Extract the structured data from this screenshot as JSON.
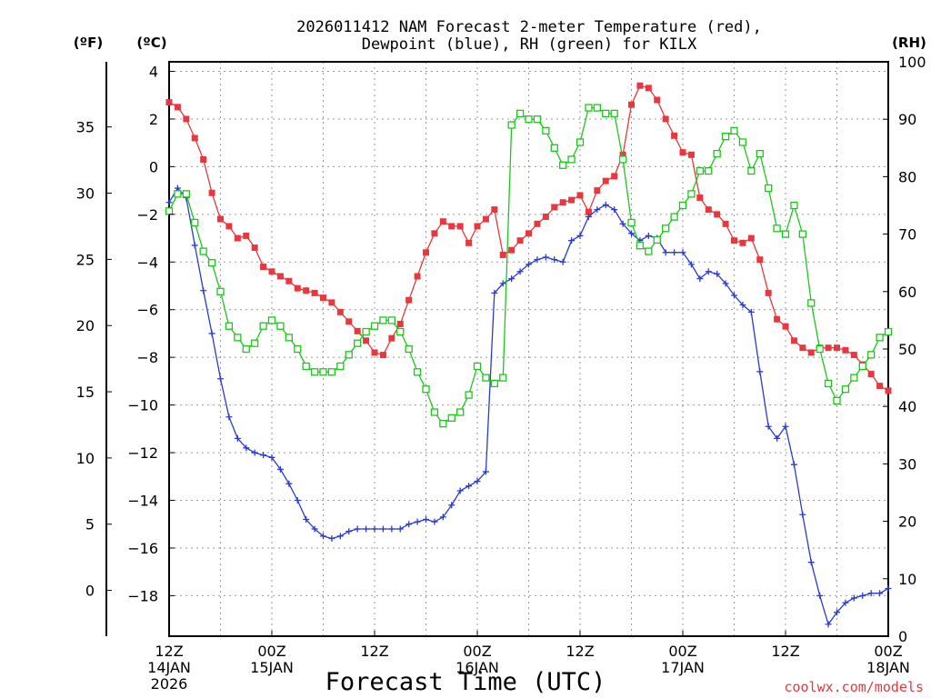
{
  "chart_data": {
    "type": "line",
    "title_line1": "2026011412 NAM Forecast 2-meter Temperature (red),",
    "title_line2": "Dewpoint (blue), RH (green) for KILX",
    "xlabel": "Forecast Time (UTC)",
    "credit": "coolwx.com/models",
    "left_outer_unit": "(ºF)",
    "left_inner_unit": "(ºC)",
    "right_unit": "(RH)",
    "celsius_ticks": [
      "4",
      "2",
      "0",
      "−2",
      "−4",
      "−6",
      "−8",
      "−10",
      "−12",
      "−14",
      "−16",
      "−18"
    ],
    "celsius_tick_values": [
      4,
      2,
      0,
      -2,
      -4,
      -6,
      -8,
      -10,
      -12,
      -14,
      -16,
      -18
    ],
    "fahrenheit_ticks": [
      "35",
      "30",
      "25",
      "20",
      "15",
      "10",
      "5",
      "0"
    ],
    "fahrenheit_tick_values": [
      35,
      30,
      25,
      20,
      15,
      10,
      5,
      0
    ],
    "rh_ticks": [
      "100",
      "90",
      "80",
      "70",
      "60",
      "50",
      "40",
      "30",
      "20",
      "10",
      "0"
    ],
    "rh_tick_values": [
      100,
      90,
      80,
      70,
      60,
      50,
      40,
      30,
      20,
      10,
      0
    ],
    "x_ticks": [
      {
        "hour": 0,
        "line1": "12Z",
        "line2": "14JAN",
        "line3": "2026"
      },
      {
        "hour": 12,
        "line1": "00Z",
        "line2": "15JAN",
        "line3": ""
      },
      {
        "hour": 24,
        "line1": "12Z",
        "line2": "",
        "line3": ""
      },
      {
        "hour": 36,
        "line1": "00Z",
        "line2": "16JAN",
        "line3": ""
      },
      {
        "hour": 48,
        "line1": "12Z",
        "line2": "",
        "line3": ""
      },
      {
        "hour": 60,
        "line1": "00Z",
        "line2": "17JAN",
        "line3": ""
      },
      {
        "hour": 72,
        "line1": "12Z",
        "line2": "",
        "line3": ""
      },
      {
        "hour": 84,
        "line1": "00Z",
        "line2": "18JAN",
        "line3": ""
      }
    ],
    "x_range_hours": [
      0,
      84
    ],
    "y_celsius_range": [
      -19.7,
      4.4
    ],
    "rh_range": [
      0,
      100
    ],
    "grid": true,
    "series": [
      {
        "name": "Temperature",
        "unit": "C",
        "color": "#e8383d",
        "marker": "filled-square",
        "values": [
          2.7,
          2.5,
          2.0,
          1.2,
          0.3,
          -1.1,
          -2.2,
          -2.5,
          -3.0,
          -2.9,
          -3.4,
          -4.2,
          -4.4,
          -4.6,
          -4.8,
          -5.1,
          -5.2,
          -5.3,
          -5.5,
          -5.7,
          -6.1,
          -6.5,
          -6.9,
          -7.3,
          -7.8,
          -7.9,
          -7.2,
          -6.6,
          -5.6,
          -4.6,
          -3.6,
          -2.8,
          -2.3,
          -2.5,
          -2.5,
          -3.2,
          -2.5,
          -2.2,
          -1.8,
          -3.7,
          -3.5,
          -3.1,
          -2.8,
          -2.4,
          -2.1,
          -1.7,
          -1.5,
          -1.4,
          -1.2,
          -1.9,
          -1.0,
          -0.6,
          -0.4,
          0.5,
          2.6,
          3.4,
          3.3,
          2.8,
          2.0,
          1.3,
          0.6,
          0.5,
          -1.3,
          -1.8,
          -2.0,
          -2.4,
          -3.1,
          -3.2,
          -3.0,
          -3.9,
          -5.3,
          -6.4,
          -6.7,
          -7.3,
          -7.6,
          -7.8,
          -7.6,
          -7.6,
          -7.6,
          -7.7,
          -7.9,
          -8.3,
          -8.7,
          -9.2,
          -9.4
        ]
      },
      {
        "name": "Dewpoint",
        "unit": "C",
        "color": "#2a3bd1",
        "marker": "plus",
        "values": [
          -1.5,
          -0.9,
          -1.3,
          -3.3,
          -5.2,
          -7.0,
          -8.9,
          -10.5,
          -11.4,
          -11.8,
          -12.0,
          -12.1,
          -12.2,
          -12.7,
          -13.3,
          -14.0,
          -14.8,
          -15.2,
          -15.5,
          -15.6,
          -15.5,
          -15.3,
          -15.2,
          -15.2,
          -15.2,
          -15.2,
          -15.2,
          -15.2,
          -15.0,
          -14.9,
          -14.8,
          -14.9,
          -14.7,
          -14.2,
          -13.6,
          -13.4,
          -13.2,
          -12.8,
          -5.3,
          -4.9,
          -4.7,
          -4.4,
          -4.1,
          -3.9,
          -3.8,
          -3.9,
          -4.0,
          -3.1,
          -2.9,
          -2.1,
          -1.8,
          -1.6,
          -1.8,
          -2.4,
          -2.8,
          -3.1,
          -2.9,
          -3.0,
          -3.6,
          -3.6,
          -3.6,
          -4.1,
          -4.7,
          -4.4,
          -4.5,
          -4.9,
          -5.4,
          -5.8,
          -6.1,
          -8.6,
          -10.9,
          -11.4,
          -10.9,
          -12.5,
          -14.6,
          -16.6,
          -18.0,
          -19.2,
          -18.7,
          -18.3,
          -18.1,
          -18.0,
          -17.9,
          -17.9,
          -17.7
        ]
      },
      {
        "name": "RH",
        "unit": "%",
        "color": "#1cc71c",
        "marker": "open-square",
        "values": [
          74,
          77,
          77,
          72,
          67,
          65,
          60,
          54,
          52,
          50,
          51,
          54,
          55,
          54,
          52,
          50,
          47,
          46,
          46,
          46,
          47,
          49,
          51,
          53,
          54,
          55,
          55,
          53,
          50,
          46,
          43,
          39,
          37,
          38,
          39,
          42,
          47,
          45,
          44,
          45,
          89,
          91,
          90,
          90,
          88,
          85,
          82,
          83,
          86,
          92,
          92,
          91,
          91,
          83,
          72,
          68,
          67,
          69,
          71,
          73,
          75,
          77,
          81,
          81,
          84,
          87,
          88,
          86,
          81,
          84,
          78,
          71,
          70,
          75,
          70,
          58,
          50,
          44,
          41,
          43,
          45,
          47,
          49,
          52,
          53
        ]
      }
    ]
  }
}
